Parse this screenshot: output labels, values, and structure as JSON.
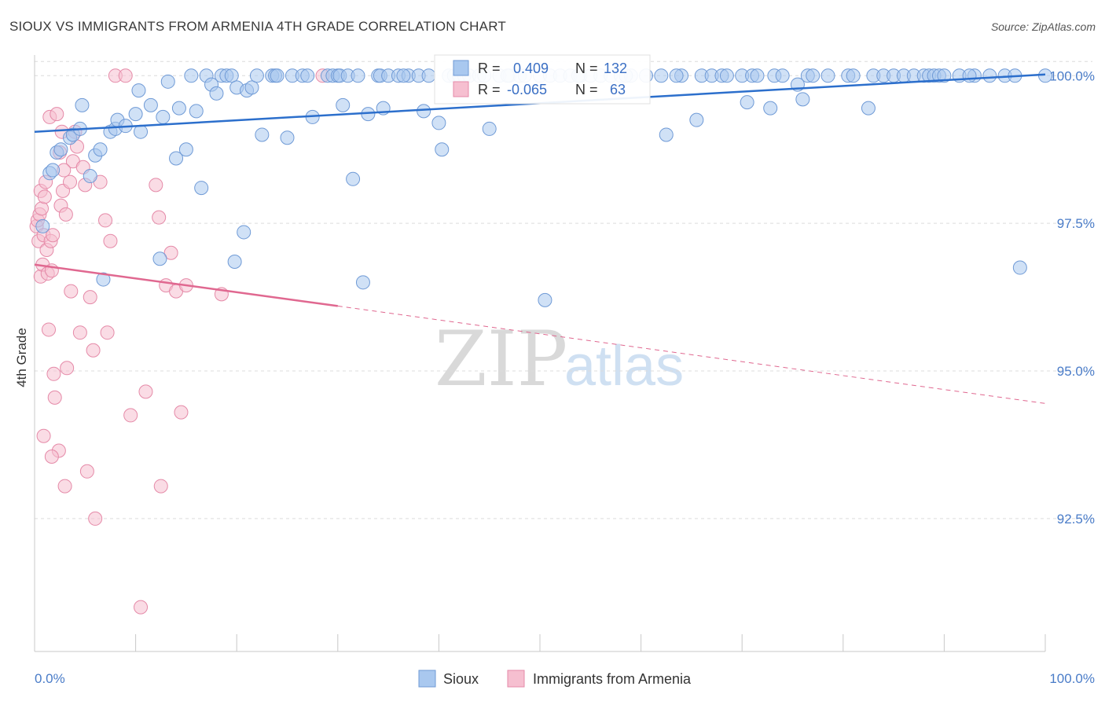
{
  "header": {
    "title": "SIOUX VS IMMIGRANTS FROM ARMENIA 4TH GRADE CORRELATION CHART",
    "source": "Source: ZipAtlas.com"
  },
  "watermark": {
    "zip": "ZIP",
    "atlas": "atlas"
  },
  "colors": {
    "sioux_fill": "#a9c8ef",
    "sioux_stroke": "#6f9ad6",
    "sioux_line": "#2c6fcc",
    "armenia_fill": "#f6bfd0",
    "armenia_stroke": "#e58aa8",
    "armenia_line": "#e06890",
    "grid": "#dcdcdc",
    "axis_label": "#4a7cc8"
  },
  "stats": {
    "sioux": {
      "r_label": "R =",
      "r_value": "0.409",
      "n_label": "N =",
      "n_value": "132"
    },
    "armenia": {
      "r_label": "R =",
      "r_value": "-0.065",
      "n_label": "N =",
      "n_value": "63"
    }
  },
  "legend": {
    "sioux": "Sioux",
    "armenia": "Immigrants from Armenia"
  },
  "chart_data": {
    "type": "scatter",
    "title": "SIOUX VS IMMIGRANTS FROM ARMENIA 4TH GRADE CORRELATION CHART",
    "xlabel": "",
    "ylabel": "4th Grade",
    "xlim": [
      0,
      100
    ],
    "ylim": [
      90.25,
      100.35
    ],
    "x_tick_labels": [
      "0.0%",
      "100.0%"
    ],
    "y_ticks": [
      92.5,
      95.0,
      97.5,
      100.0
    ],
    "y_tick_labels": [
      "92.5%",
      "95.0%",
      "97.5%",
      "100.0%"
    ],
    "x_minor_ticks": [
      0,
      10,
      20,
      30,
      40,
      50,
      60,
      70,
      80,
      90,
      100
    ],
    "series": [
      {
        "name": "Sioux",
        "trend": {
          "x": [
            0,
            100
          ],
          "y": [
            99.05,
            100.02
          ]
        },
        "points": [
          [
            0.8,
            97.45
          ],
          [
            1.5,
            98.35
          ],
          [
            1.8,
            98.4
          ],
          [
            2.2,
            98.7
          ],
          [
            2.6,
            98.75
          ],
          [
            3.5,
            98.95
          ],
          [
            3.8,
            99.0
          ],
          [
            4.5,
            99.1
          ],
          [
            4.7,
            99.5
          ],
          [
            5.5,
            98.3
          ],
          [
            6.0,
            98.65
          ],
          [
            6.5,
            98.75
          ],
          [
            6.8,
            96.55
          ],
          [
            7.5,
            99.05
          ],
          [
            8.0,
            99.1
          ],
          [
            8.2,
            99.25
          ],
          [
            9.0,
            99.15
          ],
          [
            10.0,
            99.35
          ],
          [
            10.5,
            99.05
          ],
          [
            10.3,
            99.75
          ],
          [
            11.5,
            99.5
          ],
          [
            12.4,
            96.9
          ],
          [
            12.7,
            99.3
          ],
          [
            13.2,
            99.9
          ],
          [
            14.0,
            98.6
          ],
          [
            14.3,
            99.45
          ],
          [
            15.0,
            98.75
          ],
          [
            15.5,
            100.0
          ],
          [
            16.0,
            99.4
          ],
          [
            16.5,
            98.1
          ],
          [
            17.0,
            100.0
          ],
          [
            17.5,
            99.85
          ],
          [
            18.0,
            99.7
          ],
          [
            18.5,
            100.0
          ],
          [
            19.0,
            100.0
          ],
          [
            19.5,
            100.0
          ],
          [
            19.8,
            96.85
          ],
          [
            20.0,
            99.8
          ],
          [
            20.7,
            97.35
          ],
          [
            21.0,
            99.75
          ],
          [
            21.5,
            99.8
          ],
          [
            22.0,
            100.0
          ],
          [
            22.5,
            99.0
          ],
          [
            23.5,
            100.0
          ],
          [
            23.8,
            100.0
          ],
          [
            24.0,
            100.0
          ],
          [
            25.0,
            98.95
          ],
          [
            25.5,
            100.0
          ],
          [
            26.5,
            100.0
          ],
          [
            27.0,
            100.0
          ],
          [
            27.5,
            99.3
          ],
          [
            29.0,
            100.0
          ],
          [
            29.5,
            100.0
          ],
          [
            30.0,
            100.0
          ],
          [
            30.2,
            100.0
          ],
          [
            30.5,
            99.5
          ],
          [
            31.0,
            100.0
          ],
          [
            31.5,
            98.25
          ],
          [
            32.0,
            100.0
          ],
          [
            32.5,
            96.5
          ],
          [
            33.0,
            99.35
          ],
          [
            34.0,
            100.0
          ],
          [
            34.2,
            100.0
          ],
          [
            34.5,
            99.45
          ],
          [
            35.0,
            100.0
          ],
          [
            36.0,
            100.0
          ],
          [
            37.0,
            100.0
          ],
          [
            38.0,
            100.0
          ],
          [
            38.5,
            99.4
          ],
          [
            39.0,
            100.0
          ],
          [
            40.0,
            99.2
          ],
          [
            40.3,
            98.75
          ],
          [
            41.0,
            100.0
          ],
          [
            41.5,
            100.0
          ],
          [
            42.0,
            100.0
          ],
          [
            42.5,
            100.0
          ],
          [
            43.0,
            100.0
          ],
          [
            44.0,
            100.0
          ],
          [
            44.5,
            100.0
          ],
          [
            45.0,
            99.1
          ],
          [
            46.0,
            100.0
          ],
          [
            47.0,
            100.0
          ],
          [
            48.0,
            100.0
          ],
          [
            48.5,
            100.0
          ],
          [
            50.0,
            100.0
          ],
          [
            50.5,
            96.2
          ],
          [
            51.0,
            100.0
          ],
          [
            52.0,
            100.0
          ],
          [
            53.0,
            100.0
          ],
          [
            54.0,
            100.0
          ],
          [
            55.0,
            100.0
          ],
          [
            56.0,
            100.0
          ],
          [
            57.0,
            100.0
          ],
          [
            58.0,
            100.0
          ],
          [
            59.0,
            100.0
          ],
          [
            60.5,
            100.0
          ],
          [
            62.0,
            100.0
          ],
          [
            62.5,
            99.0
          ],
          [
            64.0,
            100.0
          ],
          [
            65.5,
            99.25
          ],
          [
            66.0,
            100.0
          ],
          [
            67.0,
            100.0
          ],
          [
            68.0,
            100.0
          ],
          [
            68.5,
            100.0
          ],
          [
            70.0,
            100.0
          ],
          [
            70.5,
            99.55
          ],
          [
            71.0,
            100.0
          ],
          [
            71.5,
            100.0
          ],
          [
            72.8,
            99.45
          ],
          [
            73.2,
            100.0
          ],
          [
            75.5,
            99.85
          ],
          [
            76.0,
            99.6
          ],
          [
            76.5,
            100.0
          ],
          [
            77.0,
            100.0
          ],
          [
            78.5,
            100.0
          ],
          [
            80.5,
            100.0
          ],
          [
            82.5,
            99.45
          ],
          [
            83.0,
            100.0
          ],
          [
            84.0,
            100.0
          ],
          [
            85.0,
            100.0
          ],
          [
            86.0,
            100.0
          ],
          [
            87.0,
            100.0
          ],
          [
            88.0,
            100.0
          ],
          [
            88.5,
            100.0
          ],
          [
            89.0,
            100.0
          ],
          [
            89.5,
            100.0
          ],
          [
            90.0,
            100.0
          ],
          [
            91.5,
            100.0
          ],
          [
            93.0,
            100.0
          ],
          [
            94.5,
            100.0
          ],
          [
            96.0,
            100.0
          ],
          [
            97.0,
            100.0
          ],
          [
            97.5,
            96.75
          ],
          [
            100.0,
            100.0
          ],
          [
            53.8,
            100.0
          ],
          [
            46.8,
            100.0
          ],
          [
            36.5,
            100.0
          ],
          [
            58.5,
            100.0
          ],
          [
            74.0,
            100.0
          ],
          [
            81.0,
            100.0
          ],
          [
            92.5,
            100.0
          ],
          [
            63.5,
            100.0
          ]
        ]
      },
      {
        "name": "Immigrants from Armenia",
        "trend": {
          "x": [
            0,
            30
          ],
          "y": [
            96.8,
            96.1
          ]
        },
        "trend_dashed": {
          "x": [
            30,
            100
          ],
          "y": [
            96.1,
            94.45
          ]
        },
        "points": [
          [
            0.2,
            97.45
          ],
          [
            0.3,
            97.55
          ],
          [
            0.4,
            97.2
          ],
          [
            0.5,
            97.65
          ],
          [
            0.6,
            98.05
          ],
          [
            0.6,
            96.6
          ],
          [
            0.7,
            97.75
          ],
          [
            0.8,
            96.8
          ],
          [
            0.9,
            97.3
          ],
          [
            1.0,
            97.95
          ],
          [
            1.1,
            98.2
          ],
          [
            1.2,
            97.05
          ],
          [
            1.3,
            96.65
          ],
          [
            1.4,
            95.7
          ],
          [
            1.5,
            99.3
          ],
          [
            1.6,
            97.2
          ],
          [
            1.7,
            96.7
          ],
          [
            1.8,
            97.3
          ],
          [
            1.9,
            94.95
          ],
          [
            2.0,
            94.55
          ],
          [
            2.2,
            99.35
          ],
          [
            2.4,
            93.65
          ],
          [
            2.5,
            98.7
          ],
          [
            2.6,
            97.8
          ],
          [
            2.7,
            99.05
          ],
          [
            2.8,
            98.05
          ],
          [
            3.0,
            93.05
          ],
          [
            3.1,
            97.65
          ],
          [
            3.2,
            95.05
          ],
          [
            3.5,
            98.2
          ],
          [
            3.6,
            96.35
          ],
          [
            3.8,
            98.55
          ],
          [
            4.0,
            99.05
          ],
          [
            4.2,
            98.8
          ],
          [
            4.5,
            95.65
          ],
          [
            4.8,
            98.45
          ],
          [
            5.0,
            98.15
          ],
          [
            5.2,
            93.3
          ],
          [
            5.5,
            96.25
          ],
          [
            5.8,
            95.35
          ],
          [
            6.0,
            92.5
          ],
          [
            6.5,
            98.2
          ],
          [
            7.0,
            97.55
          ],
          [
            7.2,
            95.65
          ],
          [
            7.5,
            97.2
          ],
          [
            8.0,
            100.0
          ],
          [
            9.0,
            100.0
          ],
          [
            9.5,
            94.25
          ],
          [
            10.5,
            91.0
          ],
          [
            11.0,
            94.65
          ],
          [
            12.0,
            98.15
          ],
          [
            12.3,
            97.6
          ],
          [
            12.5,
            93.05
          ],
          [
            13.0,
            96.45
          ],
          [
            13.5,
            97.0
          ],
          [
            14.0,
            96.35
          ],
          [
            14.5,
            94.3
          ],
          [
            15.0,
            96.45
          ],
          [
            18.5,
            96.3
          ],
          [
            28.5,
            100.0
          ],
          [
            0.9,
            93.9
          ],
          [
            1.7,
            93.55
          ],
          [
            2.9,
            98.4
          ]
        ]
      }
    ]
  }
}
